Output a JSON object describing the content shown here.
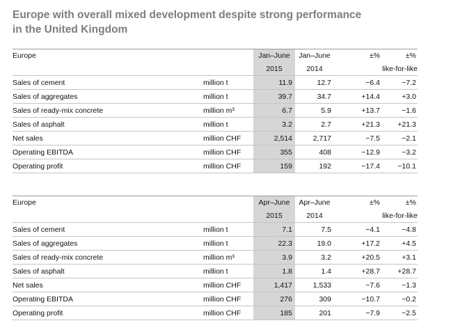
{
  "title_line1": "Europe with overall mixed development despite strong performance",
  "title_line2": "in the United Kingdom",
  "tables": [
    {
      "region": "Europe",
      "period_cur": "Jan–June",
      "period_prev": "Jan–June",
      "year_cur": "2015",
      "year_prev": "2014",
      "pct_header": "±%",
      "lfl_pct_header": "±%",
      "lfl_label": "like-for-like",
      "rows": [
        {
          "label": "Sales of cement",
          "unit": "million t",
          "cur": "11.9",
          "prev": "12.7",
          "pct": "−6.4",
          "lfl": "−7.2"
        },
        {
          "label": "Sales of aggregates",
          "unit": "million t",
          "cur": "39.7",
          "prev": "34.7",
          "pct": "+14.4",
          "lfl": "+3.0"
        },
        {
          "label": "Sales of ready-mix concrete",
          "unit": "million m³",
          "cur": "6.7",
          "prev": "5.9",
          "pct": "+13.7",
          "lfl": "−1.6"
        },
        {
          "label": "Sales of asphalt",
          "unit": "million t",
          "cur": "3.2",
          "prev": "2.7",
          "pct": "+21.3",
          "lfl": "+21.3"
        },
        {
          "label": "Net sales",
          "unit": "million CHF",
          "cur": "2,514",
          "prev": "2,717",
          "pct": "−7.5",
          "lfl": "−2.1"
        },
        {
          "label": "Operating EBITDA",
          "unit": "million CHF",
          "cur": "355",
          "prev": "408",
          "pct": "−12.9",
          "lfl": "−3.2"
        },
        {
          "label": "Operating profit",
          "unit": "million CHF",
          "cur": "159",
          "prev": "192",
          "pct": "−17.4",
          "lfl": "−10.1"
        }
      ]
    },
    {
      "region": "Europe",
      "period_cur": "Apr–June",
      "period_prev": "Apr–June",
      "year_cur": "2015",
      "year_prev": "2014",
      "pct_header": "±%",
      "lfl_pct_header": "±%",
      "lfl_label": "like-for-like",
      "rows": [
        {
          "label": "Sales of cement",
          "unit": "million t",
          "cur": "7.1",
          "prev": "7.5",
          "pct": "−4.1",
          "lfl": "−4.8"
        },
        {
          "label": "Sales of aggregates",
          "unit": "million t",
          "cur": "22.3",
          "prev": "19.0",
          "pct": "+17.2",
          "lfl": "+4.5"
        },
        {
          "label": "Sales of ready-mix concrete",
          "unit": "million m³",
          "cur": "3.9",
          "prev": "3.2",
          "pct": "+20.5",
          "lfl": "+3.1"
        },
        {
          "label": "Sales of asphalt",
          "unit": "million t",
          "cur": "1.8",
          "prev": "1.4",
          "pct": "+28.7",
          "lfl": "+28.7"
        },
        {
          "label": "Net sales",
          "unit": "million CHF",
          "cur": "1,417",
          "prev": "1,533",
          "pct": "−7.6",
          "lfl": "−1.3"
        },
        {
          "label": "Operating EBITDA",
          "unit": "million CHF",
          "cur": "276",
          "prev": "309",
          "pct": "−10.7",
          "lfl": "−0.2"
        },
        {
          "label": "Operating profit",
          "unit": "million CHF",
          "cur": "185",
          "prev": "201",
          "pct": "−7.9",
          "lfl": "−2.5"
        }
      ]
    }
  ]
}
